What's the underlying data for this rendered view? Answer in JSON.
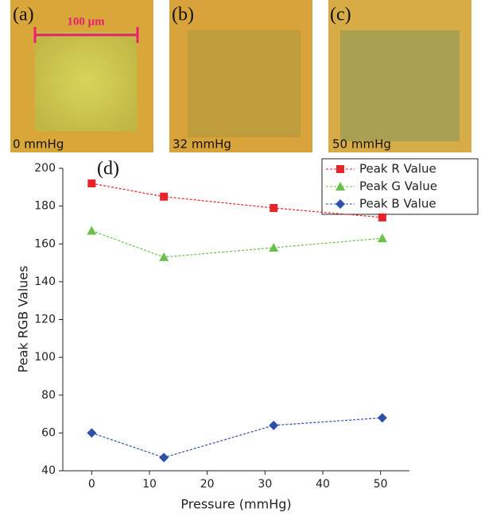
{
  "panels": [
    {
      "label": "(a)",
      "caption": "0 mmHg"
    },
    {
      "label": "(b)",
      "caption": "32 mmHg"
    },
    {
      "label": "(c)",
      "caption": "50 mmHg"
    }
  ],
  "scale_bar": "100 μm",
  "chart_data": {
    "type": "line",
    "title": "(d)",
    "x_label": "Pressure (mmHg)",
    "y_label": "Peak RGB Values",
    "x": [
      0,
      12.5,
      31.5,
      50.3
    ],
    "series": [
      {
        "name": "Peak R Value",
        "color": "#e8232a",
        "marker": "square",
        "values": [
          192,
          185,
          179,
          174
        ]
      },
      {
        "name": "Peak G Value",
        "color": "#6cc04a",
        "marker": "triangle",
        "values": [
          167,
          153,
          158,
          163
        ]
      },
      {
        "name": "Peak B Value",
        "color": "#2e50a8",
        "marker": "diamond",
        "values": [
          60,
          47,
          64,
          68
        ]
      }
    ],
    "xlim": [
      -5,
      55
    ],
    "xticks": [
      0,
      10,
      20,
      30,
      40,
      50
    ],
    "ylim": [
      40,
      200
    ],
    "yticks": [
      40,
      60,
      80,
      100,
      120,
      140,
      160,
      180,
      200
    ],
    "legend": "top-right",
    "grid": false
  }
}
